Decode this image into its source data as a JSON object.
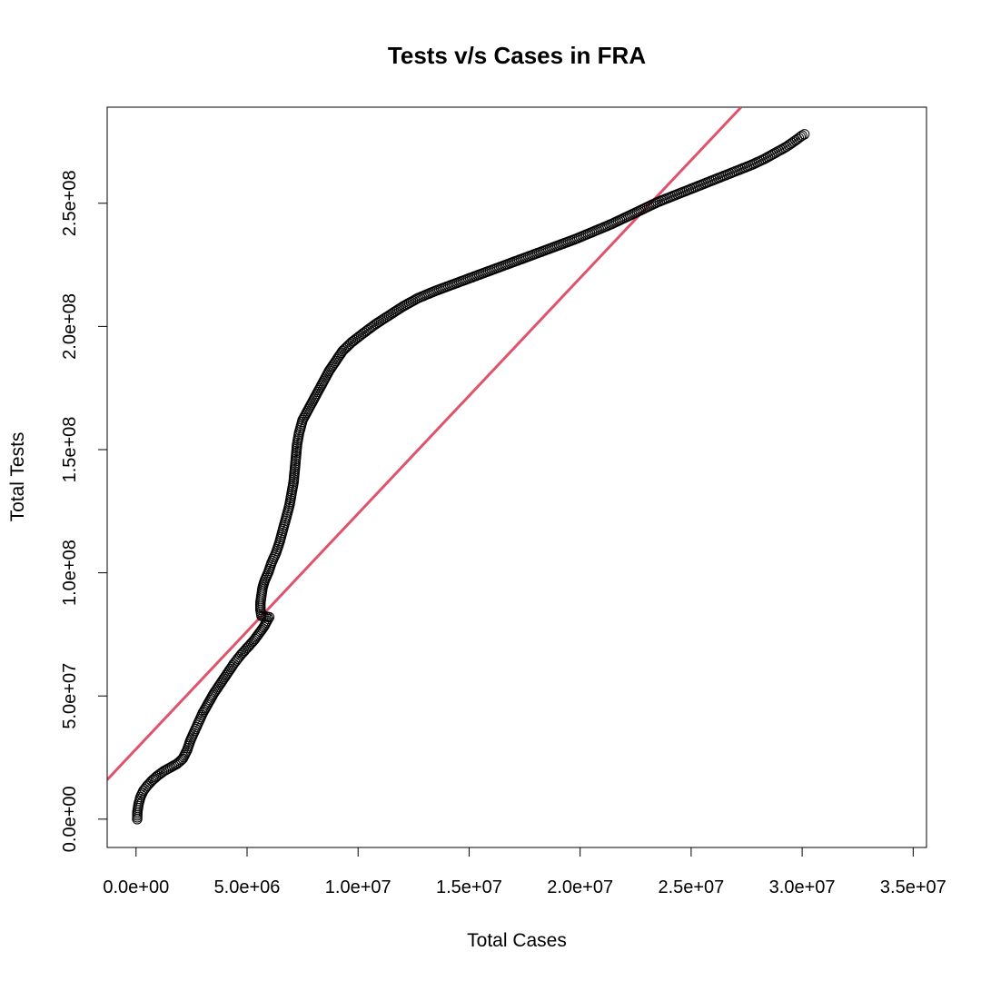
{
  "chart_data": {
    "type": "scatter",
    "title": "Tests v/s Cases in FRA",
    "xlabel": "Total Cases",
    "ylabel": "Total Tests",
    "xlim": [
      -1300000,
      35600000
    ],
    "ylim": [
      -11500000,
      289000000
    ],
    "x_ticks": [
      0,
      5000000,
      10000000,
      15000000,
      20000000,
      25000000,
      30000000,
      35000000
    ],
    "x_tick_labels": [
      "0.0e+00",
      "5.0e+06",
      "1.0e+07",
      "1.5e+07",
      "2.0e+07",
      "2.5e+07",
      "3.0e+07",
      "3.5e+07"
    ],
    "y_ticks": [
      0,
      50000000,
      100000000,
      150000000,
      200000000,
      250000000
    ],
    "y_tick_labels": [
      "0.0e+00",
      "5.0e+07",
      "1.0e+08",
      "1.5e+08",
      "2.0e+08",
      "2.5e+08"
    ],
    "grid": false,
    "point_color": "#000000",
    "line_color": "#DF536B",
    "trend_line": {
      "x": [
        -1300000,
        27250000
      ],
      "y": [
        16000000,
        289000000
      ]
    },
    "curve_points": [
      [
        50000,
        0
      ],
      [
        60000,
        3000000
      ],
      [
        110000,
        6000000
      ],
      [
        200000,
        9000000
      ],
      [
        330000,
        11500000
      ],
      [
        500000,
        13500000
      ],
      [
        700000,
        15500000
      ],
      [
        950000,
        17500000
      ],
      [
        1250000,
        19500000
      ],
      [
        1550000,
        21000000
      ],
      [
        1850000,
        22500000
      ],
      [
        2100000,
        24500000
      ],
      [
        2300000,
        28000000
      ],
      [
        2450000,
        32000000
      ],
      [
        2600000,
        35000000
      ],
      [
        2800000,
        39000000
      ],
      [
        3000000,
        43000000
      ],
      [
        3250000,
        47000000
      ],
      [
        3500000,
        51000000
      ],
      [
        3800000,
        55000000
      ],
      [
        4100000,
        59000000
      ],
      [
        4400000,
        63000000
      ],
      [
        4700000,
        66500000
      ],
      [
        5000000,
        69500000
      ],
      [
        5300000,
        72500000
      ],
      [
        5550000,
        75500000
      ],
      [
        5750000,
        78000000
      ],
      [
        5900000,
        80500000
      ],
      [
        6000000,
        82000000
      ],
      [
        5650000,
        82500000
      ],
      [
        5600000,
        85000000
      ],
      [
        5600000,
        88000000
      ],
      [
        5650000,
        91000000
      ],
      [
        5700000,
        94000000
      ],
      [
        5800000,
        97000000
      ],
      [
        5950000,
        100000000
      ],
      [
        6100000,
        104000000
      ],
      [
        6300000,
        108000000
      ],
      [
        6450000,
        112000000
      ],
      [
        6600000,
        117000000
      ],
      [
        6750000,
        122000000
      ],
      [
        6900000,
        127000000
      ],
      [
        7000000,
        132000000
      ],
      [
        7100000,
        137000000
      ],
      [
        7150000,
        142000000
      ],
      [
        7200000,
        147000000
      ],
      [
        7250000,
        152000000
      ],
      [
        7350000,
        157000000
      ],
      [
        7500000,
        162000000
      ],
      [
        7800000,
        167000000
      ],
      [
        8100000,
        172000000
      ],
      [
        8400000,
        177000000
      ],
      [
        8700000,
        182000000
      ],
      [
        9000000,
        186000000
      ],
      [
        9300000,
        190000000
      ],
      [
        9700000,
        193500000
      ],
      [
        10200000,
        197000000
      ],
      [
        10800000,
        201000000
      ],
      [
        11400000,
        204500000
      ],
      [
        12000000,
        208000000
      ],
      [
        12700000,
        211500000
      ],
      [
        13500000,
        214500000
      ],
      [
        14400000,
        217500000
      ],
      [
        15300000,
        220500000
      ],
      [
        16200000,
        223500000
      ],
      [
        17100000,
        226500000
      ],
      [
        18000000,
        229500000
      ],
      [
        18900000,
        232500000
      ],
      [
        19800000,
        235500000
      ],
      [
        20600000,
        238500000
      ],
      [
        21400000,
        241500000
      ],
      [
        22100000,
        244500000
      ],
      [
        22800000,
        247500000
      ],
      [
        23500000,
        250500000
      ],
      [
        24200000,
        253000000
      ],
      [
        24900000,
        255500000
      ],
      [
        25600000,
        258000000
      ],
      [
        26300000,
        260500000
      ],
      [
        27000000,
        263000000
      ],
      [
        27700000,
        265500000
      ],
      [
        28300000,
        268000000
      ],
      [
        28800000,
        270500000
      ],
      [
        29300000,
        273000000
      ],
      [
        29700000,
        275500000
      ],
      [
        30000000,
        277500000
      ],
      [
        30100000,
        278000000
      ]
    ]
  }
}
